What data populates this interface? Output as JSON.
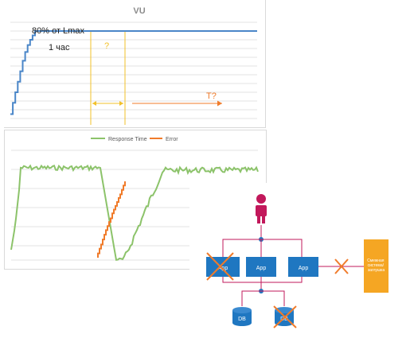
{
  "vu_chart": {
    "title": "VU",
    "annotation_load": "80% от Lmax",
    "annotation_time": "1 час",
    "annotation_question": "?",
    "annotation_t": "T?",
    "colors": {
      "line": "#4a86c8",
      "marker": "#f2c029",
      "arrow": "#f07b2a",
      "grid": "#e3e3e3",
      "title": "#8c8c8c"
    }
  },
  "chart_data": [
    {
      "type": "line",
      "title": "VU",
      "xlabel": "",
      "ylabel": "",
      "grid": true,
      "x": [
        0,
        1,
        1,
        2,
        2,
        3,
        3,
        4,
        4,
        5,
        5,
        6,
        6,
        7,
        7,
        8,
        8,
        9,
        9,
        10,
        10,
        100
      ],
      "series": [
        {
          "values": [
            5,
            5,
            18,
            18,
            30,
            30,
            42,
            42,
            54,
            54,
            66,
            66,
            76,
            76,
            84,
            84,
            90,
            90,
            95,
            95,
            100,
            100
          ]
        }
      ],
      "ylim": [
        0,
        110
      ]
    },
    {
      "type": "line",
      "legend_position": "top",
      "grid": true,
      "series": [
        {
          "name": "Response Time",
          "color": "#8cc36a"
        },
        {
          "name": "Error",
          "color": "#f07b2a"
        }
      ]
    }
  ],
  "rt_chart": {
    "legend": [
      {
        "label": "Response Time",
        "color": "#8cc36a"
      },
      {
        "label": "Error",
        "color": "#f07b2a"
      }
    ]
  },
  "arch": {
    "nodes": [
      {
        "label": "App"
      },
      {
        "label": "App"
      },
      {
        "label": "App"
      }
    ],
    "db_left": "DB",
    "db_right": "DB",
    "external": "Смежная система/ заглушка",
    "colors": {
      "box": "#1f77c1",
      "person": "#c2185b",
      "line": "#c2185b",
      "cross": "#f07b2a",
      "external": "#f5a623"
    }
  }
}
